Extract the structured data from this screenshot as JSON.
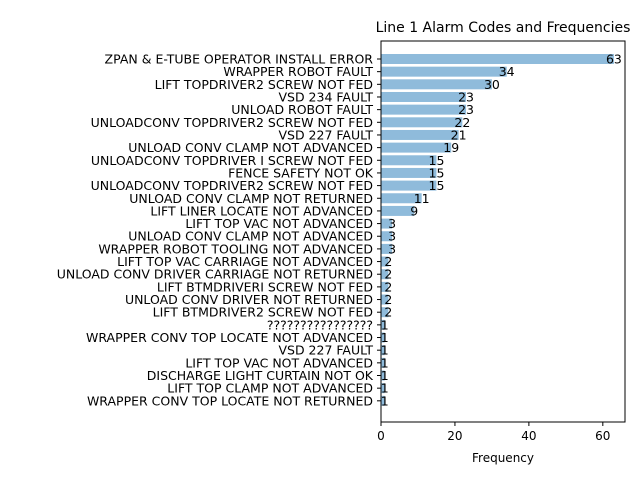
{
  "chart_data": {
    "type": "bar",
    "orientation": "horizontal",
    "title": "Line 1 Alarm Codes and Frequencies",
    "xlabel": "Frequency",
    "ylabel": "",
    "xlim": [
      0,
      66
    ],
    "xticks": [
      "0",
      "20",
      "40",
      "60"
    ],
    "grid": false,
    "bar_color": "#8fbbdb",
    "categories": [
      "ZPAN & E-TUBE OPERATOR INSTALL ERROR",
      "WRAPPER ROBOT FAULT",
      "LIFT TOPDRIVER2 SCREW NOT FED",
      "VSD 234 FAULT",
      "UNLOAD ROBOT FAULT",
      "UNLOADCONV TOPDRIVER2 SCREW NOT FED",
      "VSD 227 FAULT",
      "UNLOAD CONV CLAMP NOT ADVANCED",
      "UNLOADCONV TOPDRIVER I SCREW NOT FED",
      "FENCE SAFETY NOT OK",
      "UNLOADCONV TOPDRIVER2 SCREW NOT FED",
      "UNLOAD CONV CLAMP NOT RETURNED",
      "LIFT LINER LOCATE NOT ADVANCED",
      "LIFT TOP VAC NOT ADVANCED",
      "UNLOAD CONV CLAMP NOT ADVANCED",
      "WRAPPER ROBOT TOOLING NOT ADVANCED",
      "LIFT TOP VAC CARRIAGE NOT ADVANCED",
      "UNLOAD CONV DRIVER CARRIAGE NOT RETURNED",
      "LIFT BTMDRIVERI SCREW NOT FED",
      "UNLOAD CONV DRIVER NOT RETURNED",
      "LIFT BTMDRIVER2 SCREW NOT FED",
      "????????????????",
      "WRAPPER CONV TOP LOCATE NOT ADVANCED",
      "VSD 227 FAULT",
      "LIFT TOP VAC NOT ADVANCED",
      "DISCHARGE LIGHT CURTAIN NOT OK",
      "LIFT TOP CLAMP NOT ADVANCED",
      "WRAPPER CONV TOP LOCATE NOT RETURNED"
    ],
    "values": [
      63,
      34,
      30,
      23,
      23,
      22,
      21,
      19,
      15,
      15,
      15,
      11,
      9,
      3,
      3,
      3,
      2,
      2,
      2,
      2,
      2,
      1,
      1,
      1,
      1,
      1,
      1,
      1
    ],
    "value_labels": [
      "63",
      "34",
      "30",
      "23",
      "23",
      "22",
      "21",
      "19",
      "15",
      "15",
      "15",
      "11",
      "9",
      "3",
      "3",
      "3",
      "2",
      "2",
      "2",
      "2",
      "2",
      "1",
      "1",
      "1",
      "1",
      "1",
      "1",
      "1"
    ]
  }
}
